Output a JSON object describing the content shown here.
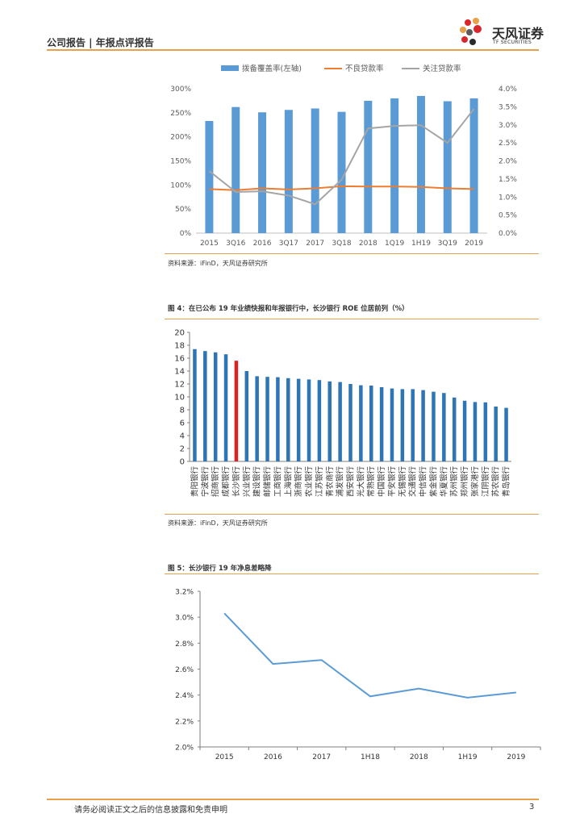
{
  "header": {
    "left_text": "公司报告 | 年报点评报告",
    "logo_name": "天风证券",
    "logo_sub": "TF SECURITIES"
  },
  "figures": [
    {
      "source": "资料来源：iFinD，天风证券研究所"
    },
    {
      "title": "图 4：在已公布 19 年业绩快报和年报银行中，长沙银行 ROE 位居前列（%）",
      "source": "资料来源：iFinD，天风证券研究所"
    },
    {
      "title": "图 5：长沙银行 19 年净息差略降"
    }
  ],
  "chart_data": [
    {
      "type": "bar",
      "categories": [
        "2015",
        "3Q16",
        "2016",
        "3Q17",
        "2017",
        "3Q18",
        "2018",
        "1Q19",
        "1H19",
        "3Q19",
        "2019"
      ],
      "series": [
        {
          "name": "拨备覆盖率(左轴)",
          "type": "bar",
          "axis": "left",
          "color": "#5b9bd5",
          "values": [
            233,
            262,
            251,
            256,
            259,
            252,
            275,
            280,
            285,
            274,
            280
          ]
        },
        {
          "name": "不良贷款率",
          "type": "line",
          "axis": "right",
          "color": "#ed7d31",
          "values": [
            1.22,
            1.19,
            1.24,
            1.21,
            1.24,
            1.3,
            1.29,
            1.29,
            1.28,
            1.24,
            1.22
          ]
        },
        {
          "name": "关注贷款率",
          "type": "line",
          "axis": "right",
          "color": "#a5a5a5",
          "values": [
            1.72,
            1.14,
            1.16,
            1.04,
            0.8,
            1.48,
            2.9,
            2.97,
            2.99,
            2.5,
            3.44
          ]
        }
      ],
      "yleft_ticks": [
        "0%",
        "50%",
        "100%",
        "150%",
        "200%",
        "250%",
        "300%"
      ],
      "yleft_lim": [
        0,
        300
      ],
      "yright_ticks": [
        "0.0%",
        "0.5%",
        "1.0%",
        "1.5%",
        "2.0%",
        "2.5%",
        "3.0%",
        "3.5%",
        "4.0%"
      ],
      "yright_lim": [
        0,
        4.0
      ],
      "legend_position": "top"
    },
    {
      "type": "bar",
      "categories": [
        "贵阳银行",
        "宁波银行",
        "招商银行",
        "成都银行",
        "长沙银行",
        "兴业银行",
        "建设银行",
        "邮储银行",
        "工商银行",
        "上海银行",
        "浙商银行",
        "农业银行",
        "江苏银行",
        "青农商行",
        "浦发银行",
        "西安银行",
        "光大银行",
        "常熟银行",
        "中国银行",
        "平安银行",
        "无锡银行",
        "交通银行",
        "中信银行",
        "紫金银行",
        "华夏银行",
        "苏州银行",
        "郑州银行",
        "张家港行",
        "江阴银行",
        "苏农银行",
        "青岛银行"
      ],
      "values": [
        17.4,
        17.1,
        16.9,
        16.6,
        15.6,
        14.0,
        13.2,
        13.1,
        13.05,
        12.9,
        12.8,
        12.7,
        12.6,
        12.4,
        12.3,
        12.0,
        11.8,
        11.75,
        11.5,
        11.3,
        11.2,
        11.2,
        11.05,
        10.8,
        10.6,
        9.9,
        9.4,
        9.2,
        9.15,
        8.5,
        8.3
      ],
      "highlight_index": 4,
      "bar_color": "#2e75b6",
      "highlight_color": "#e02020",
      "yticks": [
        "0",
        "2",
        "4",
        "6",
        "8",
        "10",
        "12",
        "14",
        "16",
        "18",
        "20"
      ],
      "ylim": [
        0,
        20
      ]
    },
    {
      "type": "line",
      "categories": [
        "2015",
        "2016",
        "2017",
        "1H18",
        "2018",
        "1H19",
        "2019"
      ],
      "values": [
        3.03,
        2.64,
        2.67,
        2.39,
        2.45,
        2.38,
        2.42
      ],
      "color": "#5b9bd5",
      "yticks": [
        "2.0%",
        "2.2%",
        "2.4%",
        "2.6%",
        "2.8%",
        "3.0%",
        "3.2%"
      ],
      "ylim": [
        2.0,
        3.2
      ]
    }
  ],
  "footer": {
    "disclaimer": "请务必阅读正文之后的信息披露和免责申明",
    "page_number": "3"
  }
}
